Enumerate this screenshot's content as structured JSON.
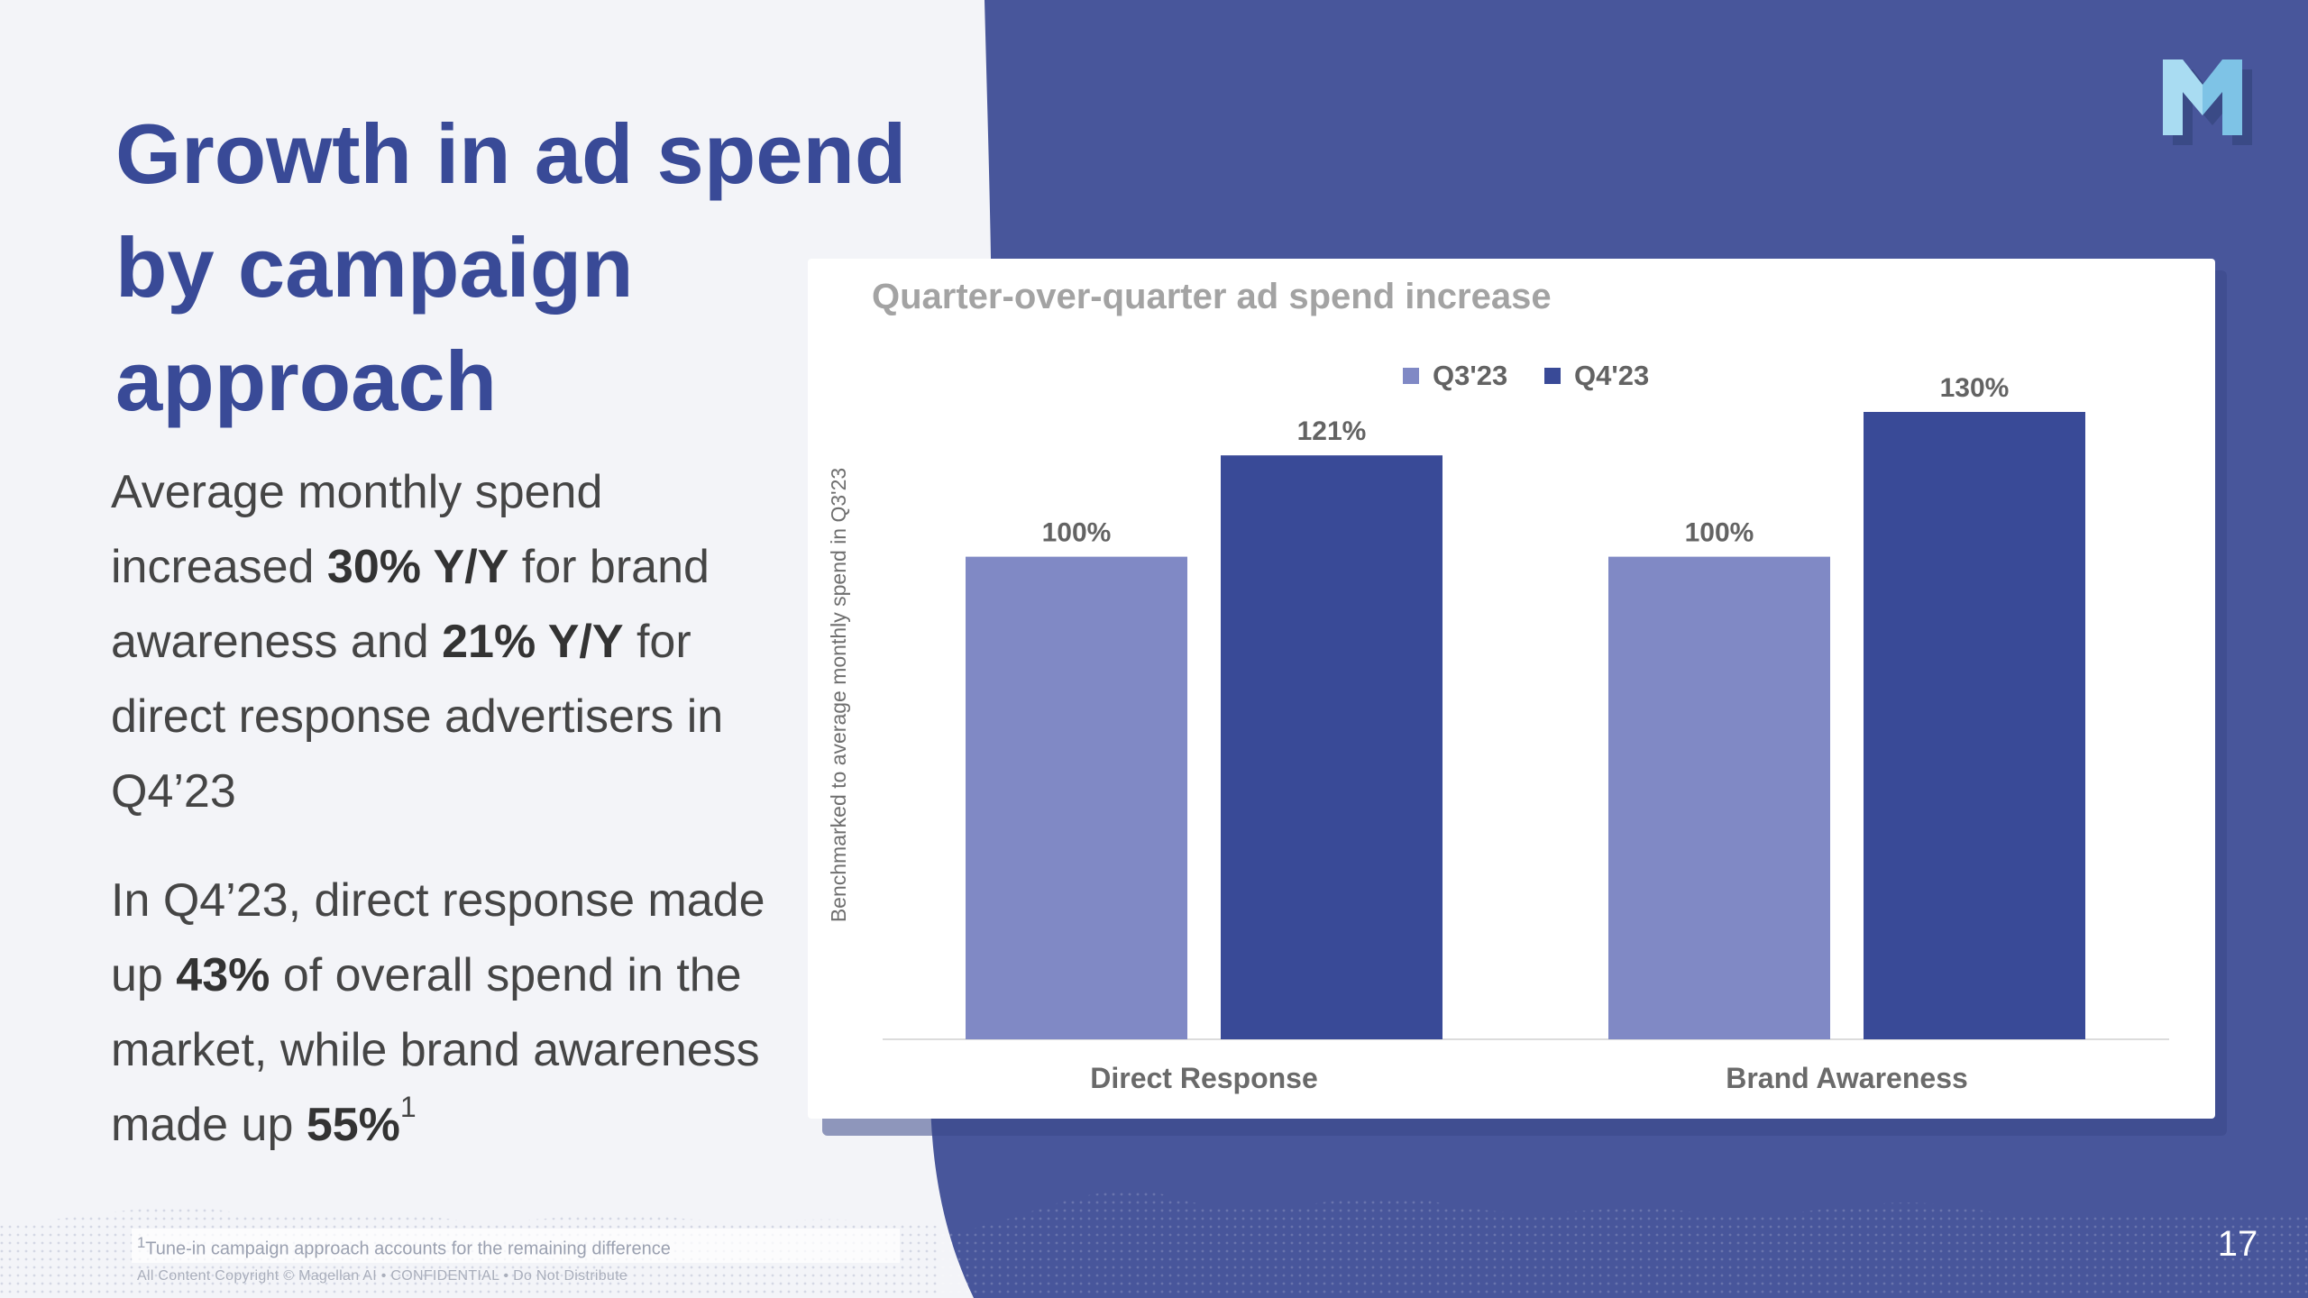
{
  "slide": {
    "title": "Growth in ad spend by campaign approach",
    "page_number": "17",
    "colors": {
      "background": "#f3f4f8",
      "panel": "#48569b",
      "title": "#394a97",
      "q3_bar": "#8089c5",
      "q4_bar": "#394a97"
    }
  },
  "logo": {
    "icon": "magellan-m-logo"
  },
  "body": {
    "p1": [
      {
        "text": "Average monthly spend increased ",
        "bold": false
      },
      {
        "text": "30% Y/Y",
        "bold": true
      },
      {
        "text": " for brand awareness and ",
        "bold": false
      },
      {
        "text": "21% Y/Y",
        "bold": true
      },
      {
        "text": " for direct response advertisers in Q4’23",
        "bold": false
      }
    ],
    "p2": [
      {
        "text": "In Q4’23, direct response made up ",
        "bold": false
      },
      {
        "text": "43%",
        "bold": true
      },
      {
        "text": " of overall spend in the market, while brand awareness made up ",
        "bold": false
      },
      {
        "text": "55%",
        "bold": true
      }
    ],
    "p2_superscript": "1"
  },
  "footer": {
    "footnote_marker": "1",
    "footnote": "Tune-in campaign approach accounts for the remaining difference",
    "copyright": "All Content Copyright © Magellan AI  •  CONFIDENTIAL  •  Do Not Distribute"
  },
  "chart_data": {
    "type": "bar",
    "title": "Quarter-over-quarter ad spend increase",
    "categories": [
      "Direct Response",
      "Brand Awareness"
    ],
    "series": [
      {
        "name": "Q3'23",
        "values": [
          100,
          100
        ],
        "labels": [
          "100%",
          "100%"
        ],
        "color": "#8089c5"
      },
      {
        "name": "Q4'23",
        "values": [
          121,
          130
        ],
        "labels": [
          "121%",
          "130%"
        ],
        "color": "#394a97"
      }
    ],
    "xlabel": "",
    "ylabel": "Benchmarked to average monthly spend in Q3'23",
    "ylim": [
      0,
      130
    ],
    "grid": false,
    "legend_position": "top-center"
  }
}
